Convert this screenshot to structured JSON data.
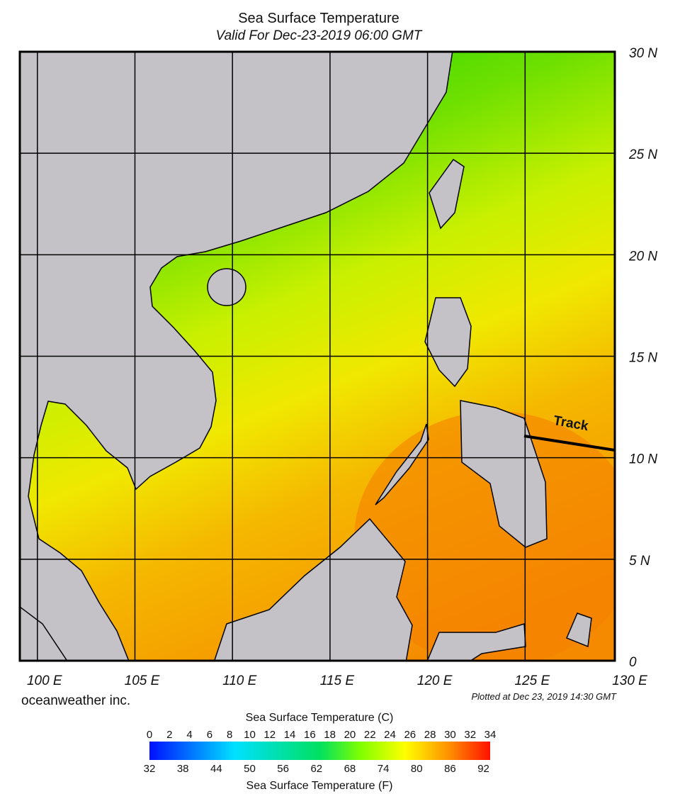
{
  "title": "Sea Surface Temperature",
  "subtitle": "Valid For Dec-23-2019 06:00 GMT",
  "map": {
    "lon_range": [
      99.1,
      129.6
    ],
    "lat_range": [
      0,
      30
    ],
    "lon_ticks": [
      {
        "value": 100,
        "label": "100 E"
      },
      {
        "value": 105,
        "label": "105 E"
      },
      {
        "value": 110,
        "label": "110 E"
      },
      {
        "value": 115,
        "label": "115 E"
      },
      {
        "value": 120,
        "label": "120 E"
      },
      {
        "value": 125,
        "label": "125 E"
      },
      {
        "value": 130,
        "label": "130 E"
      }
    ],
    "lat_ticks": [
      {
        "value": 30,
        "label": "30 N"
      },
      {
        "value": 25,
        "label": "25 N"
      },
      {
        "value": 20,
        "label": "20 N"
      },
      {
        "value": 15,
        "label": "15 N"
      },
      {
        "value": 10,
        "label": "10 N"
      },
      {
        "value": 5,
        "label": "5 N"
      },
      0
    ],
    "track_label": "Track"
  },
  "credit": "oceanweather inc.",
  "plotted": "Plotted at Dec 23, 2019 14:30 GMT",
  "colorbar": {
    "title_c": "Sea Surface Temperature (C)",
    "title_f": "Sea Surface Temperature (F)",
    "c_lim": [
      0,
      34
    ],
    "c_ticks": [
      0,
      2,
      4,
      6,
      8,
      10,
      12,
      14,
      16,
      18,
      20,
      22,
      24,
      26,
      28,
      30,
      32,
      34
    ],
    "f_lim": [
      32,
      93.2
    ],
    "f_ticks": [
      32,
      38,
      44,
      50,
      56,
      62,
      68,
      74,
      80,
      86,
      92
    ]
  }
}
